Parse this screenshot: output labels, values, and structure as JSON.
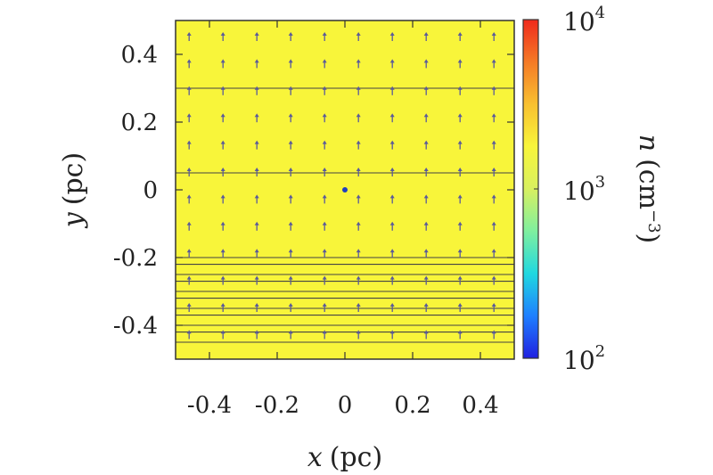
{
  "chart_data": {
    "type": "heatmap",
    "xlabel": {
      "var": "x",
      "unit": "(pc)"
    },
    "ylabel": {
      "var": "y",
      "unit": "(pc)"
    },
    "xlim": [
      -0.5,
      0.5
    ],
    "ylim": [
      -0.5,
      0.5
    ],
    "xticks": [
      -0.4,
      -0.2,
      0,
      0.2,
      0.4
    ],
    "yticks": [
      -0.4,
      -0.2,
      0,
      0.2,
      0.4
    ],
    "xtick_labels": [
      "-0.4",
      "-0.2",
      "0",
      "0.2",
      "0.4"
    ],
    "ytick_labels": [
      "0.4",
      "0.2",
      "0",
      "-0.2",
      "-0.4"
    ],
    "field_color": "#f8f53a",
    "vector_color": "#5a5a9a",
    "vector_direction": "+y",
    "vector_grid_x": [
      -0.46,
      -0.36,
      -0.26,
      -0.16,
      -0.06,
      0.04,
      0.14,
      0.24,
      0.34,
      0.44
    ],
    "vector_grid_y": [
      0.45,
      0.37,
      0.29,
      0.21,
      0.13,
      0.05,
      -0.03,
      -0.11,
      -0.19,
      -0.27,
      -0.35,
      -0.43
    ],
    "contour_levels_y": [
      0.3,
      0.05,
      -0.2,
      -0.22,
      -0.25,
      -0.27,
      -0.3,
      -0.32,
      -0.35,
      -0.37,
      -0.4,
      -0.42,
      -0.45
    ],
    "point": {
      "x": 0,
      "y": 0,
      "color": "#1f3fbf"
    },
    "colorbar": {
      "scale": "log",
      "range": [
        100,
        10000
      ],
      "ticks": [
        {
          "base": "10",
          "exp": "4",
          "value": 10000
        },
        {
          "base": "10",
          "exp": "3",
          "value": 1000
        },
        {
          "base": "10",
          "exp": "2",
          "value": 100
        }
      ],
      "label": {
        "var": "n",
        "unit_open": "(cm",
        "unit_exp": "−3",
        "unit_close": ")"
      },
      "colors": [
        "#2020e0",
        "#1f7fff",
        "#20d8e0",
        "#7fef9f",
        "#d8f060",
        "#f8f53a",
        "#f8c030",
        "#f57a26",
        "#ef2a1c"
      ]
    }
  }
}
